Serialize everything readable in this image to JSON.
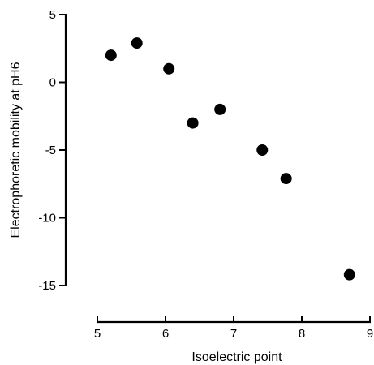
{
  "chart_data": {
    "type": "scatter",
    "xlabel": "Isoelectric point",
    "ylabel": "Electrophoretic mobility at pH6",
    "xlim": [
      5,
      9
    ],
    "ylim": [
      -15,
      5
    ],
    "xticks": [
      5,
      6,
      7,
      8,
      9
    ],
    "xtick_labels": [
      "5",
      "6",
      "7",
      "8",
      "9"
    ],
    "yticks": [
      5,
      0,
      -5,
      -10,
      -15
    ],
    "ytick_labels": [
      "5",
      "0",
      "-5",
      "-10",
      "-15"
    ],
    "grid": false,
    "points": [
      {
        "x": 5.2,
        "y": 2.0
      },
      {
        "x": 5.58,
        "y": 2.9
      },
      {
        "x": 6.05,
        "y": 1.0
      },
      {
        "x": 6.4,
        "y": -3.0
      },
      {
        "x": 6.8,
        "y": -2.0
      },
      {
        "x": 7.42,
        "y": -5.0
      },
      {
        "x": 7.77,
        "y": -7.1
      },
      {
        "x": 8.7,
        "y": -14.2
      }
    ],
    "marker_color": "#000000",
    "axis_color": "#000000"
  }
}
